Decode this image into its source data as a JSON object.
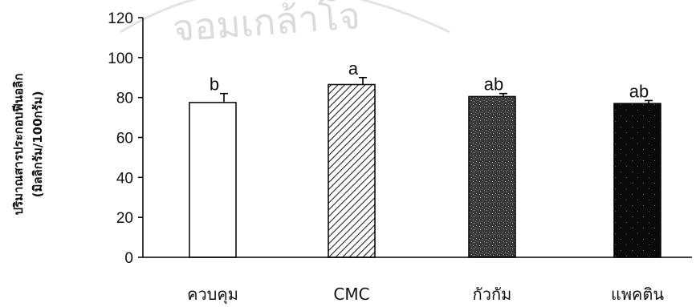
{
  "chart_data": {
    "type": "bar",
    "categories": [
      "ควบคุม",
      "CMC",
      "กัวกัม",
      "แพคติน"
    ],
    "values": [
      77.5,
      86.5,
      80.5,
      77
    ],
    "errors": [
      4.5,
      3.5,
      1.5,
      1.5
    ],
    "significance": [
      "b",
      "a",
      "ab",
      "ab"
    ],
    "ylabel_lines": [
      "ปริมาณสารประกอบฟีนอลิก",
      "(มิลลิกรัม/100กรัม)"
    ],
    "ylim": [
      0,
      120
    ],
    "yticks": [
      0,
      20,
      40,
      60,
      80,
      100,
      120
    ],
    "grid": false,
    "bar_fills": [
      "white",
      "diagonal-hatch",
      "light-speckle",
      "dark-speckle"
    ]
  },
  "watermark": {
    "text": "จอมเกล้าโจ",
    "color": "#cfcfcf"
  }
}
